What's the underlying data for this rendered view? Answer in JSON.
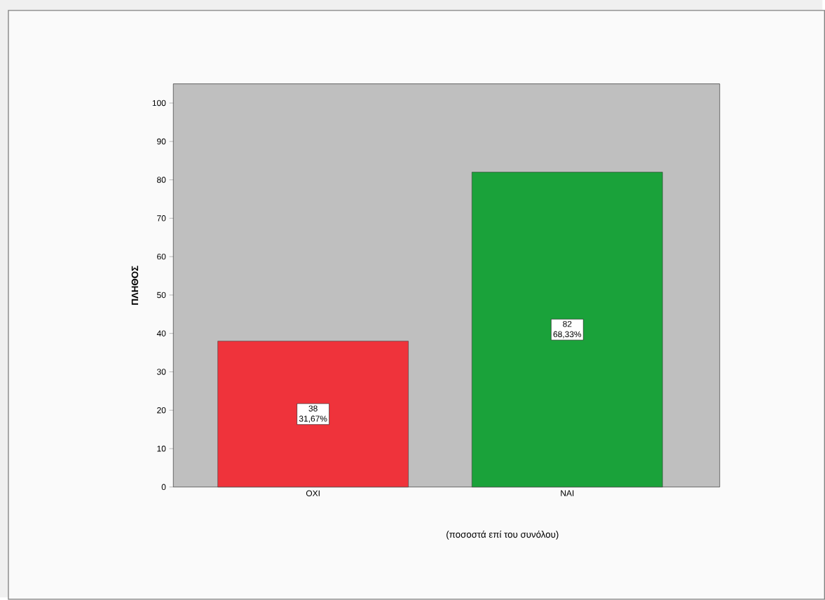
{
  "chart_data": {
    "type": "bar",
    "categories": [
      "OXI",
      "NAI"
    ],
    "values": [
      38,
      82
    ],
    "colors": [
      "#ef333b",
      "#1aa23a"
    ],
    "ylabel": "ΠΛΗΘΟΣ",
    "xlabel": "(ποσοστά επί του συνόλου)",
    "ylim": [
      0,
      105
    ],
    "yticks": [
      0,
      10,
      20,
      30,
      40,
      50,
      60,
      70,
      80,
      90,
      100
    ],
    "data_labels": true,
    "annotations": [
      "31,67%",
      "68,33%"
    ]
  }
}
